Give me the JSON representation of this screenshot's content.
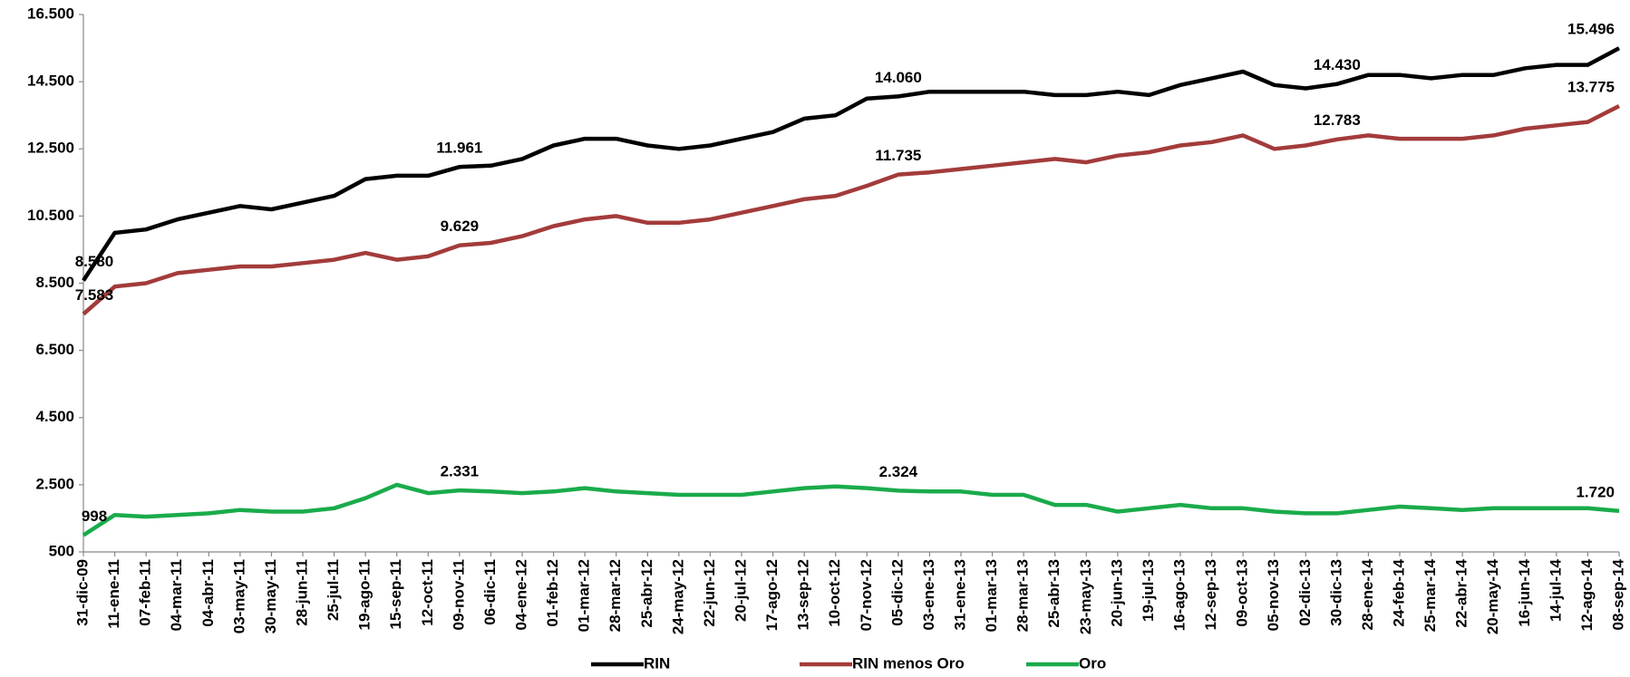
{
  "chart_data": {
    "type": "line",
    "categories": [
      "31-dic-09",
      "11-ene-11",
      "07-feb-11",
      "04-mar-11",
      "04-abr-11",
      "03-may-11",
      "30-may-11",
      "28-jun-11",
      "25-jul-11",
      "19-ago-11",
      "15-sep-11",
      "12-oct-11",
      "09-nov-11",
      "06-dic-11",
      "04-ene-12",
      "01-feb-12",
      "01-mar-12",
      "28-mar-12",
      "25-abr-12",
      "24-may-12",
      "22-jun-12",
      "20-jul-12",
      "17-ago-12",
      "13-sep-12",
      "10-oct-12",
      "07-nov-12",
      "05-dic-12",
      "03-ene-13",
      "31-ene-13",
      "01-mar-13",
      "28-mar-13",
      "25-abr-13",
      "23-may-13",
      "20-jun-13",
      "19-jul-13",
      "16-ago-13",
      "12-sep-13",
      "09-oct-13",
      "05-nov-13",
      "02-dic-13",
      "30-dic-13",
      "28-ene-14",
      "24-feb-14",
      "25-mar-14",
      "22-abr-14",
      "20-may-14",
      "16-jun-14",
      "14-jul-14",
      "12-ago-14",
      "08-sep-14"
    ],
    "series": [
      {
        "name": "RIN",
        "color": "#000000",
        "values": [
          8580,
          10000,
          10100,
          10400,
          10600,
          10800,
          10700,
          10900,
          11100,
          11600,
          11700,
          11700,
          11961,
          12000,
          12200,
          12600,
          12800,
          12800,
          12600,
          12500,
          12600,
          12800,
          13000,
          13400,
          13500,
          14000,
          14060,
          14200,
          14200,
          14200,
          14200,
          14100,
          14100,
          14200,
          14100,
          14400,
          14600,
          14800,
          14400,
          14300,
          14430,
          14700,
          14700,
          14600,
          14700,
          14700,
          14900,
          15000,
          15000,
          15496
        ],
        "value_labels": [
          "8.580",
          null,
          null,
          null,
          null,
          null,
          null,
          null,
          null,
          null,
          null,
          null,
          "11.961",
          null,
          null,
          null,
          null,
          null,
          null,
          null,
          null,
          null,
          null,
          null,
          null,
          null,
          "14.060",
          null,
          null,
          null,
          null,
          null,
          null,
          null,
          null,
          null,
          null,
          null,
          null,
          null,
          "14.430",
          null,
          null,
          null,
          null,
          null,
          null,
          null,
          null,
          "15.496"
        ]
      },
      {
        "name": "RIN menos Oro",
        "color": "#a33b3b",
        "values": [
          7583,
          8400,
          8500,
          8800,
          8900,
          9000,
          9000,
          9100,
          9200,
          9400,
          9200,
          9300,
          9629,
          9700,
          9900,
          10200,
          10400,
          10500,
          10300,
          10300,
          10400,
          10600,
          10800,
          11000,
          11100,
          11400,
          11735,
          11800,
          11900,
          12000,
          12100,
          12200,
          12100,
          12300,
          12400,
          12600,
          12700,
          12900,
          12500,
          12600,
          12783,
          12900,
          12800,
          12800,
          12800,
          12900,
          13100,
          13200,
          13300,
          13775
        ],
        "value_labels": [
          "7.583",
          null,
          null,
          null,
          null,
          null,
          null,
          null,
          null,
          null,
          null,
          null,
          "9.629",
          null,
          null,
          null,
          null,
          null,
          null,
          null,
          null,
          null,
          null,
          null,
          null,
          null,
          "11.735",
          null,
          null,
          null,
          null,
          null,
          null,
          null,
          null,
          null,
          null,
          null,
          null,
          null,
          "12.783",
          null,
          null,
          null,
          null,
          null,
          null,
          null,
          null,
          "13.775"
        ]
      },
      {
        "name": "Oro",
        "color": "#1aab4b",
        "values": [
          998,
          1600,
          1550,
          1600,
          1650,
          1750,
          1700,
          1700,
          1800,
          2100,
          2500,
          2250,
          2331,
          2300,
          2250,
          2300,
          2400,
          2300,
          2250,
          2200,
          2200,
          2200,
          2300,
          2400,
          2450,
          2400,
          2324,
          2300,
          2300,
          2200,
          2200,
          1900,
          1900,
          1700,
          1800,
          1900,
          1800,
          1800,
          1700,
          1650,
          1650,
          1750,
          1850,
          1800,
          1750,
          1800,
          1800,
          1800,
          1800,
          1720
        ],
        "value_labels": [
          "998",
          null,
          null,
          null,
          null,
          null,
          null,
          null,
          null,
          null,
          null,
          null,
          "2.331",
          null,
          null,
          null,
          null,
          null,
          null,
          null,
          null,
          null,
          null,
          null,
          null,
          null,
          "2.324",
          null,
          null,
          null,
          null,
          null,
          null,
          null,
          null,
          null,
          null,
          null,
          null,
          null,
          null,
          null,
          null,
          null,
          null,
          null,
          null,
          null,
          null,
          "1.720"
        ]
      }
    ],
    "ylim": [
      500,
      16500
    ],
    "yticks": [
      {
        "value": 500,
        "label": "500"
      },
      {
        "value": 2500,
        "label": "2.500"
      },
      {
        "value": 4500,
        "label": "4.500"
      },
      {
        "value": 6500,
        "label": "6.500"
      },
      {
        "value": 8500,
        "label": "8.500"
      },
      {
        "value": 10500,
        "label": "10.500"
      },
      {
        "value": 12500,
        "label": "12.500"
      },
      {
        "value": 14500,
        "label": "14.500"
      },
      {
        "value": 16500,
        "label": "16.500"
      }
    ],
    "grid": false
  }
}
